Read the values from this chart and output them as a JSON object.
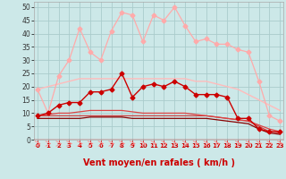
{
  "background_color": "#cce8e8",
  "grid_color": "#aacccc",
  "xlabel": "Vent moyen/en rafales ( km/h )",
  "xlabel_color": "#cc0000",
  "xlabel_fontsize": 7,
  "ylim": [
    0,
    52
  ],
  "xlim": [
    -0.3,
    23.3
  ],
  "series": [
    {
      "name": "rafales_max",
      "y": [
        19,
        10,
        24,
        30,
        42,
        33,
        30,
        41,
        48,
        47,
        37,
        47,
        45,
        50,
        43,
        37,
        38,
        36,
        36,
        34,
        33,
        22,
        9,
        7
      ],
      "color": "#ffaaaa",
      "lw": 0.9,
      "marker": "D",
      "ms": 2.5,
      "zorder": 3
    },
    {
      "name": "vent_moyen",
      "y": [
        9,
        10,
        13,
        14,
        14,
        18,
        18,
        19,
        25,
        16,
        20,
        21,
        20,
        22,
        20,
        17,
        17,
        17,
        16,
        8,
        8,
        4,
        3,
        3
      ],
      "color": "#cc0000",
      "lw": 1.0,
      "marker": "D",
      "ms": 2.5,
      "zorder": 5
    },
    {
      "name": "rafales_moy_upper",
      "y": [
        19,
        20,
        21,
        22,
        23,
        23,
        23,
        23,
        23,
        23,
        23,
        23,
        23,
        23,
        23,
        22,
        22,
        21,
        20,
        19,
        17,
        15,
        13,
        11
      ],
      "color": "#ffbbbb",
      "lw": 1.0,
      "marker": null,
      "ms": 0,
      "zorder": 2
    },
    {
      "name": "vent_moy_median",
      "y": [
        9,
        9.5,
        10,
        10,
        10.5,
        11,
        11,
        11,
        11,
        10.5,
        10,
        10,
        10,
        10,
        10,
        9.5,
        9,
        8.5,
        8,
        7.5,
        7,
        5.5,
        4,
        3
      ],
      "color": "#dd4444",
      "lw": 0.9,
      "marker": null,
      "ms": 0,
      "zorder": 3
    },
    {
      "name": "vent_min",
      "y": [
        8,
        8,
        8,
        8,
        8,
        8.5,
        8.5,
        8.5,
        8.5,
        8,
        8,
        8,
        8,
        8,
        8,
        8,
        8,
        7.5,
        7,
        6.5,
        6,
        4,
        2.5,
        2
      ],
      "color": "#880000",
      "lw": 0.9,
      "marker": null,
      "ms": 0,
      "zorder": 2
    },
    {
      "name": "rafales_lower",
      "y": [
        9,
        9,
        9,
        9,
        9,
        9,
        9,
        9,
        9,
        9,
        9,
        9,
        9,
        9,
        9,
        9,
        9,
        8.5,
        8,
        7.5,
        7,
        5,
        3,
        2.5
      ],
      "color": "#cc4444",
      "lw": 0.9,
      "marker": null,
      "ms": 0,
      "zorder": 2
    }
  ],
  "arrow_color": "#ff8888",
  "ytick_vals": [
    0,
    5,
    10,
    15,
    20,
    25,
    30,
    35,
    40,
    45,
    50
  ]
}
